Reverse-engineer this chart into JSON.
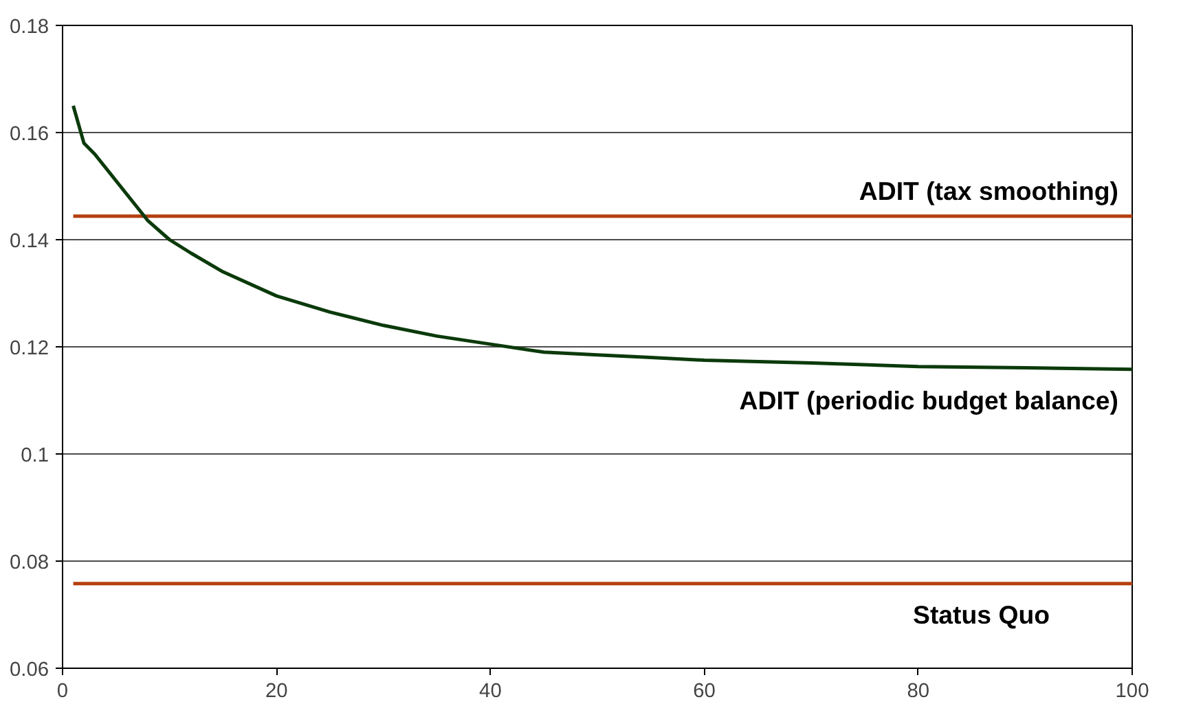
{
  "chart_data": {
    "type": "line",
    "xlim": [
      0,
      100
    ],
    "ylim": [
      0.06,
      0.18
    ],
    "xticks": [
      0,
      20,
      40,
      60,
      80,
      100
    ],
    "yticks": [
      {
        "value": 0.06,
        "label": "0.06"
      },
      {
        "value": 0.08,
        "label": "0.08"
      },
      {
        "value": 0.1,
        "label": "0.1"
      },
      {
        "value": 0.12,
        "label": "0.12"
      },
      {
        "value": 0.14,
        "label": "0.14"
      },
      {
        "value": 0.16,
        "label": "0.16"
      },
      {
        "value": 0.18,
        "label": "0.18"
      }
    ],
    "grid": "y",
    "line_style": "solid",
    "series": [
      {
        "name": "ADIT (tax smoothing)",
        "color": "#b5400f",
        "x": [
          1,
          100
        ],
        "values": [
          0.1444,
          0.1444
        ]
      },
      {
        "name": "ADIT (periodic budget balance)",
        "color": "#0b3a0b",
        "x": [
          1,
          2,
          3,
          5,
          7,
          8,
          10,
          12,
          15,
          20,
          25,
          30,
          35,
          40,
          45,
          50,
          55,
          60,
          70,
          80,
          90,
          100
        ],
        "values": [
          0.165,
          0.158,
          0.156,
          0.151,
          0.146,
          0.1435,
          0.14,
          0.1375,
          0.134,
          0.1295,
          0.1265,
          0.124,
          0.122,
          0.1205,
          0.119,
          0.1185,
          0.118,
          0.1175,
          0.117,
          0.1163,
          0.1161,
          0.1158
        ]
      },
      {
        "name": "Status Quo",
        "color": "#b5400f",
        "x": [
          1,
          100
        ],
        "values": [
          0.0758,
          0.0758
        ]
      }
    ]
  }
}
